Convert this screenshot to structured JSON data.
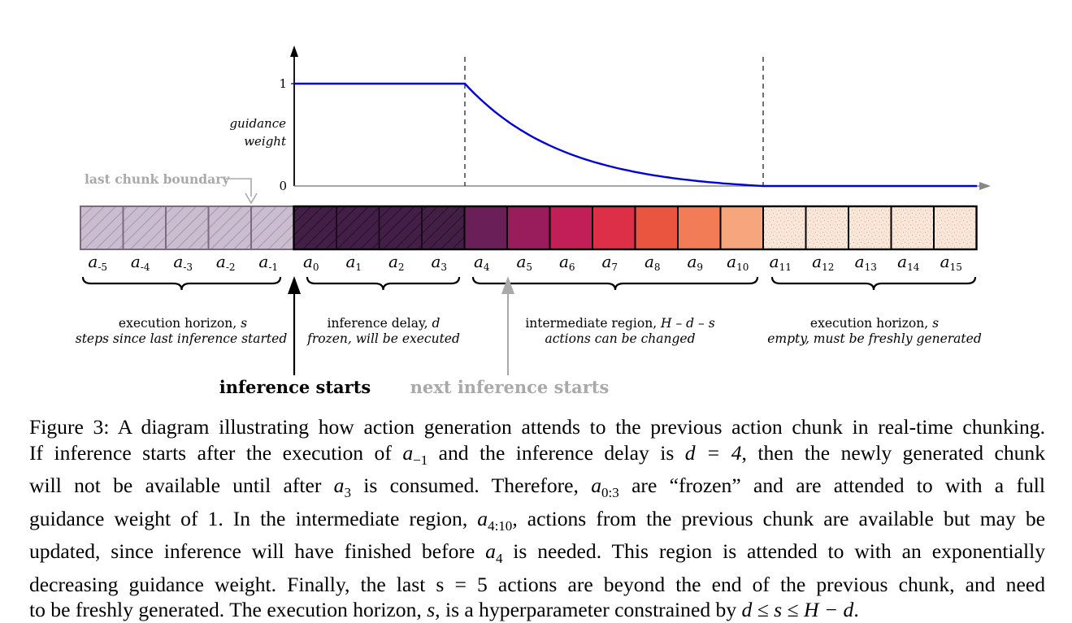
{
  "figure": {
    "y_axis_label_line1": "guidance",
    "y_axis_label_line2": "weight",
    "y_tick_top": "1",
    "y_tick_bottom": "0",
    "last_chunk_boundary": "last chunk boundary",
    "inference_starts": "inference starts",
    "next_inference_starts": "next inference starts",
    "curve_color": "#0000d8",
    "cells": [
      {
        "label": "a-5",
        "base": "a",
        "sub": "-5",
        "color": "#cbbdd0",
        "pattern": "hatch-light"
      },
      {
        "label": "a-4",
        "base": "a",
        "sub": "-4",
        "color": "#cbbdd0",
        "pattern": "hatch-light"
      },
      {
        "label": "a-3",
        "base": "a",
        "sub": "-3",
        "color": "#cbbdd0",
        "pattern": "hatch-light"
      },
      {
        "label": "a-2",
        "base": "a",
        "sub": "-2",
        "color": "#cbbdd0",
        "pattern": "hatch-light"
      },
      {
        "label": "a-1",
        "base": "a",
        "sub": "-1",
        "color": "#cbbdd0",
        "pattern": "hatch-light"
      },
      {
        "label": "a0",
        "base": "a",
        "sub": "0",
        "color": "#431f48",
        "pattern": "hatch-dark"
      },
      {
        "label": "a1",
        "base": "a",
        "sub": "1",
        "color": "#431f48",
        "pattern": "hatch-dark"
      },
      {
        "label": "a2",
        "base": "a",
        "sub": "2",
        "color": "#431f48",
        "pattern": "hatch-dark"
      },
      {
        "label": "a3",
        "base": "a",
        "sub": "3",
        "color": "#431f48",
        "pattern": "hatch-dark"
      },
      {
        "label": "a4",
        "base": "a",
        "sub": "4",
        "color": "#6b1f58",
        "pattern": "none"
      },
      {
        "label": "a5",
        "base": "a",
        "sub": "5",
        "color": "#991c5c",
        "pattern": "none"
      },
      {
        "label": "a6",
        "base": "a",
        "sub": "6",
        "color": "#c21e58",
        "pattern": "none"
      },
      {
        "label": "a7",
        "base": "a",
        "sub": "7",
        "color": "#dd3048",
        "pattern": "none"
      },
      {
        "label": "a8",
        "base": "a",
        "sub": "8",
        "color": "#ea5540",
        "pattern": "none"
      },
      {
        "label": "a9",
        "base": "a",
        "sub": "9",
        "color": "#f27c55",
        "pattern": "none"
      },
      {
        "label": "a10",
        "base": "a",
        "sub": "10",
        "color": "#f6a57d",
        "pattern": "none"
      },
      {
        "label": "a11",
        "base": "a",
        "sub": "11",
        "color": "#fbe6d8",
        "pattern": "dots"
      },
      {
        "label": "a12",
        "base": "a",
        "sub": "12",
        "color": "#fbe6d8",
        "pattern": "dots"
      },
      {
        "label": "a13",
        "base": "a",
        "sub": "13",
        "color": "#fbe6d8",
        "pattern": "dots"
      },
      {
        "label": "a14",
        "base": "a",
        "sub": "14",
        "color": "#fbe6d8",
        "pattern": "dots"
      },
      {
        "label": "a15",
        "base": "a",
        "sub": "15",
        "color": "#fbe6d8",
        "pattern": "dots"
      }
    ],
    "regions": [
      {
        "line1_prefix": "execution horizon, ",
        "line1_var": "s",
        "line2": "steps since last inference started"
      },
      {
        "line1_prefix": "inference delay, ",
        "line1_var": "d",
        "line2": "frozen, will be executed"
      },
      {
        "line1_prefix": "intermediate region, ",
        "line1_var": "H – d – s",
        "line2": "actions can be changed"
      },
      {
        "line1_prefix": "execution horizon, ",
        "line1_var": "s",
        "line2": "empty, must be freshly generated"
      }
    ]
  },
  "caption": {
    "line1": "Figure 3: A diagram illustrating how action generation attends to the previous action chunk in real-time chunking.",
    "line2_a": "If inference starts after the execution of ",
    "line2_m1": "a",
    "line2_m1_sub": "−1",
    "line2_b": " and the inference delay is ",
    "line2_m2": "d = 4",
    "line2_c": ", then the newly generated chunk",
    "line3_a": "will not be available until after ",
    "line3_m1": "a",
    "line3_m1_sub": "3",
    "line3_b": " is consumed. Therefore, ",
    "line3_m2": "a",
    "line3_m2_sub": "0:3",
    "line3_c": " are “frozen” and are attended to with a full",
    "line4_a": "guidance weight of 1. In the intermediate region, ",
    "line4_m1": "a",
    "line4_m1_sub": "4:10",
    "line4_b": ", actions from the previous chunk are available but may be",
    "line5_a": "updated, since inference will have finished before ",
    "line5_m1": "a",
    "line5_m1_sub": "4",
    "line5_b": " is needed. This region is attended to with an exponentially",
    "line6": "decreasing guidance weight. Finally, the last s = 5 actions are beyond the end of the previous chunk, and need",
    "line7_a": "to be freshly generated. The execution horizon, ",
    "line7_m1": "s",
    "line7_b": ", is a hyperparameter constrained by ",
    "line7_m2": "d ≤ s ≤ H − d",
    "line7_c": "."
  }
}
